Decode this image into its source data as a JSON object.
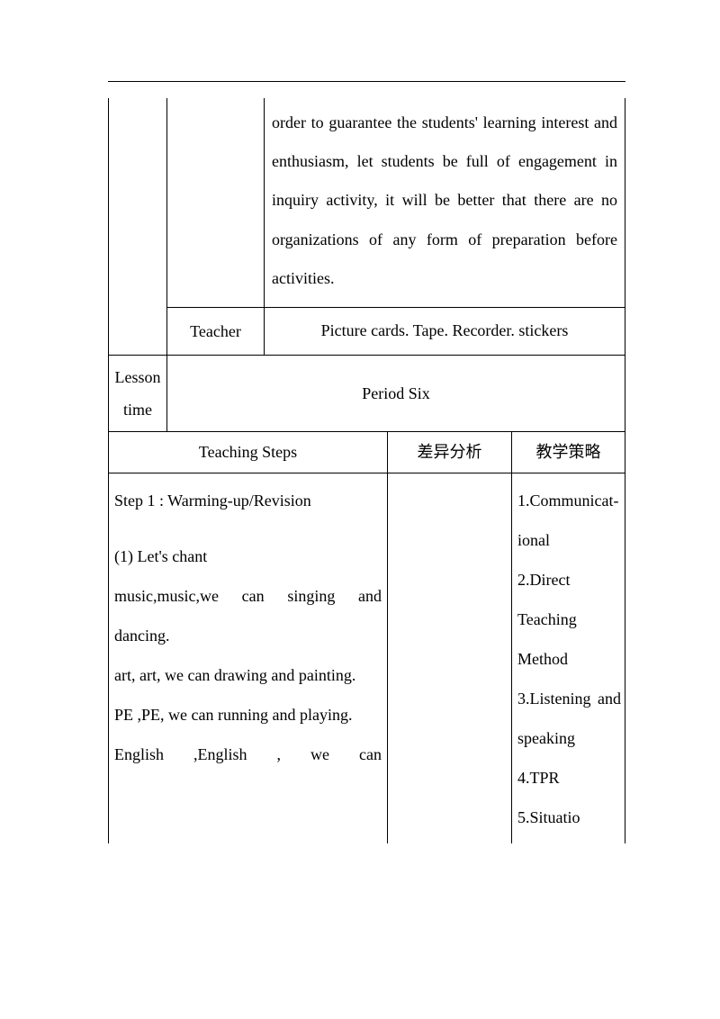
{
  "row1_col3_text": "order to guarantee the students' learning interest and enthusiasm, let students be full of engagement in inquiry activity, it will be better that there are no organizations of any form of preparation before activities.",
  "row2_col2": "Teacher",
  "row2_col3": "Picture cards. Tape. Recorder. stickers",
  "row3_col1_line1": "Lesson",
  "row3_col1_line2": "time",
  "row3_col2": "Period Six",
  "row4_col1": "Teaching Steps",
  "row4_col2": "差异分析",
  "row4_col3": "教学策略",
  "steps_line1": "Step 1 : Warming-up/Revision",
  "steps_line2": "(1) Let's chant",
  "steps_line3": " music,music,we can singing and dancing.",
  "steps_line4": " art, art, we can drawing and painting.",
  "steps_line5": " PE ,PE,  we can running and playing.",
  "steps_line6": " English ,English , we can",
  "strategy_l1": "1.Communicat-ional",
  "strategy_l2": "2.Direct Teaching Method",
  "strategy_l3": "3.Listening and speaking",
  "strategy_l4": "4.TPR",
  "strategy_l5": "5.Situatio"
}
